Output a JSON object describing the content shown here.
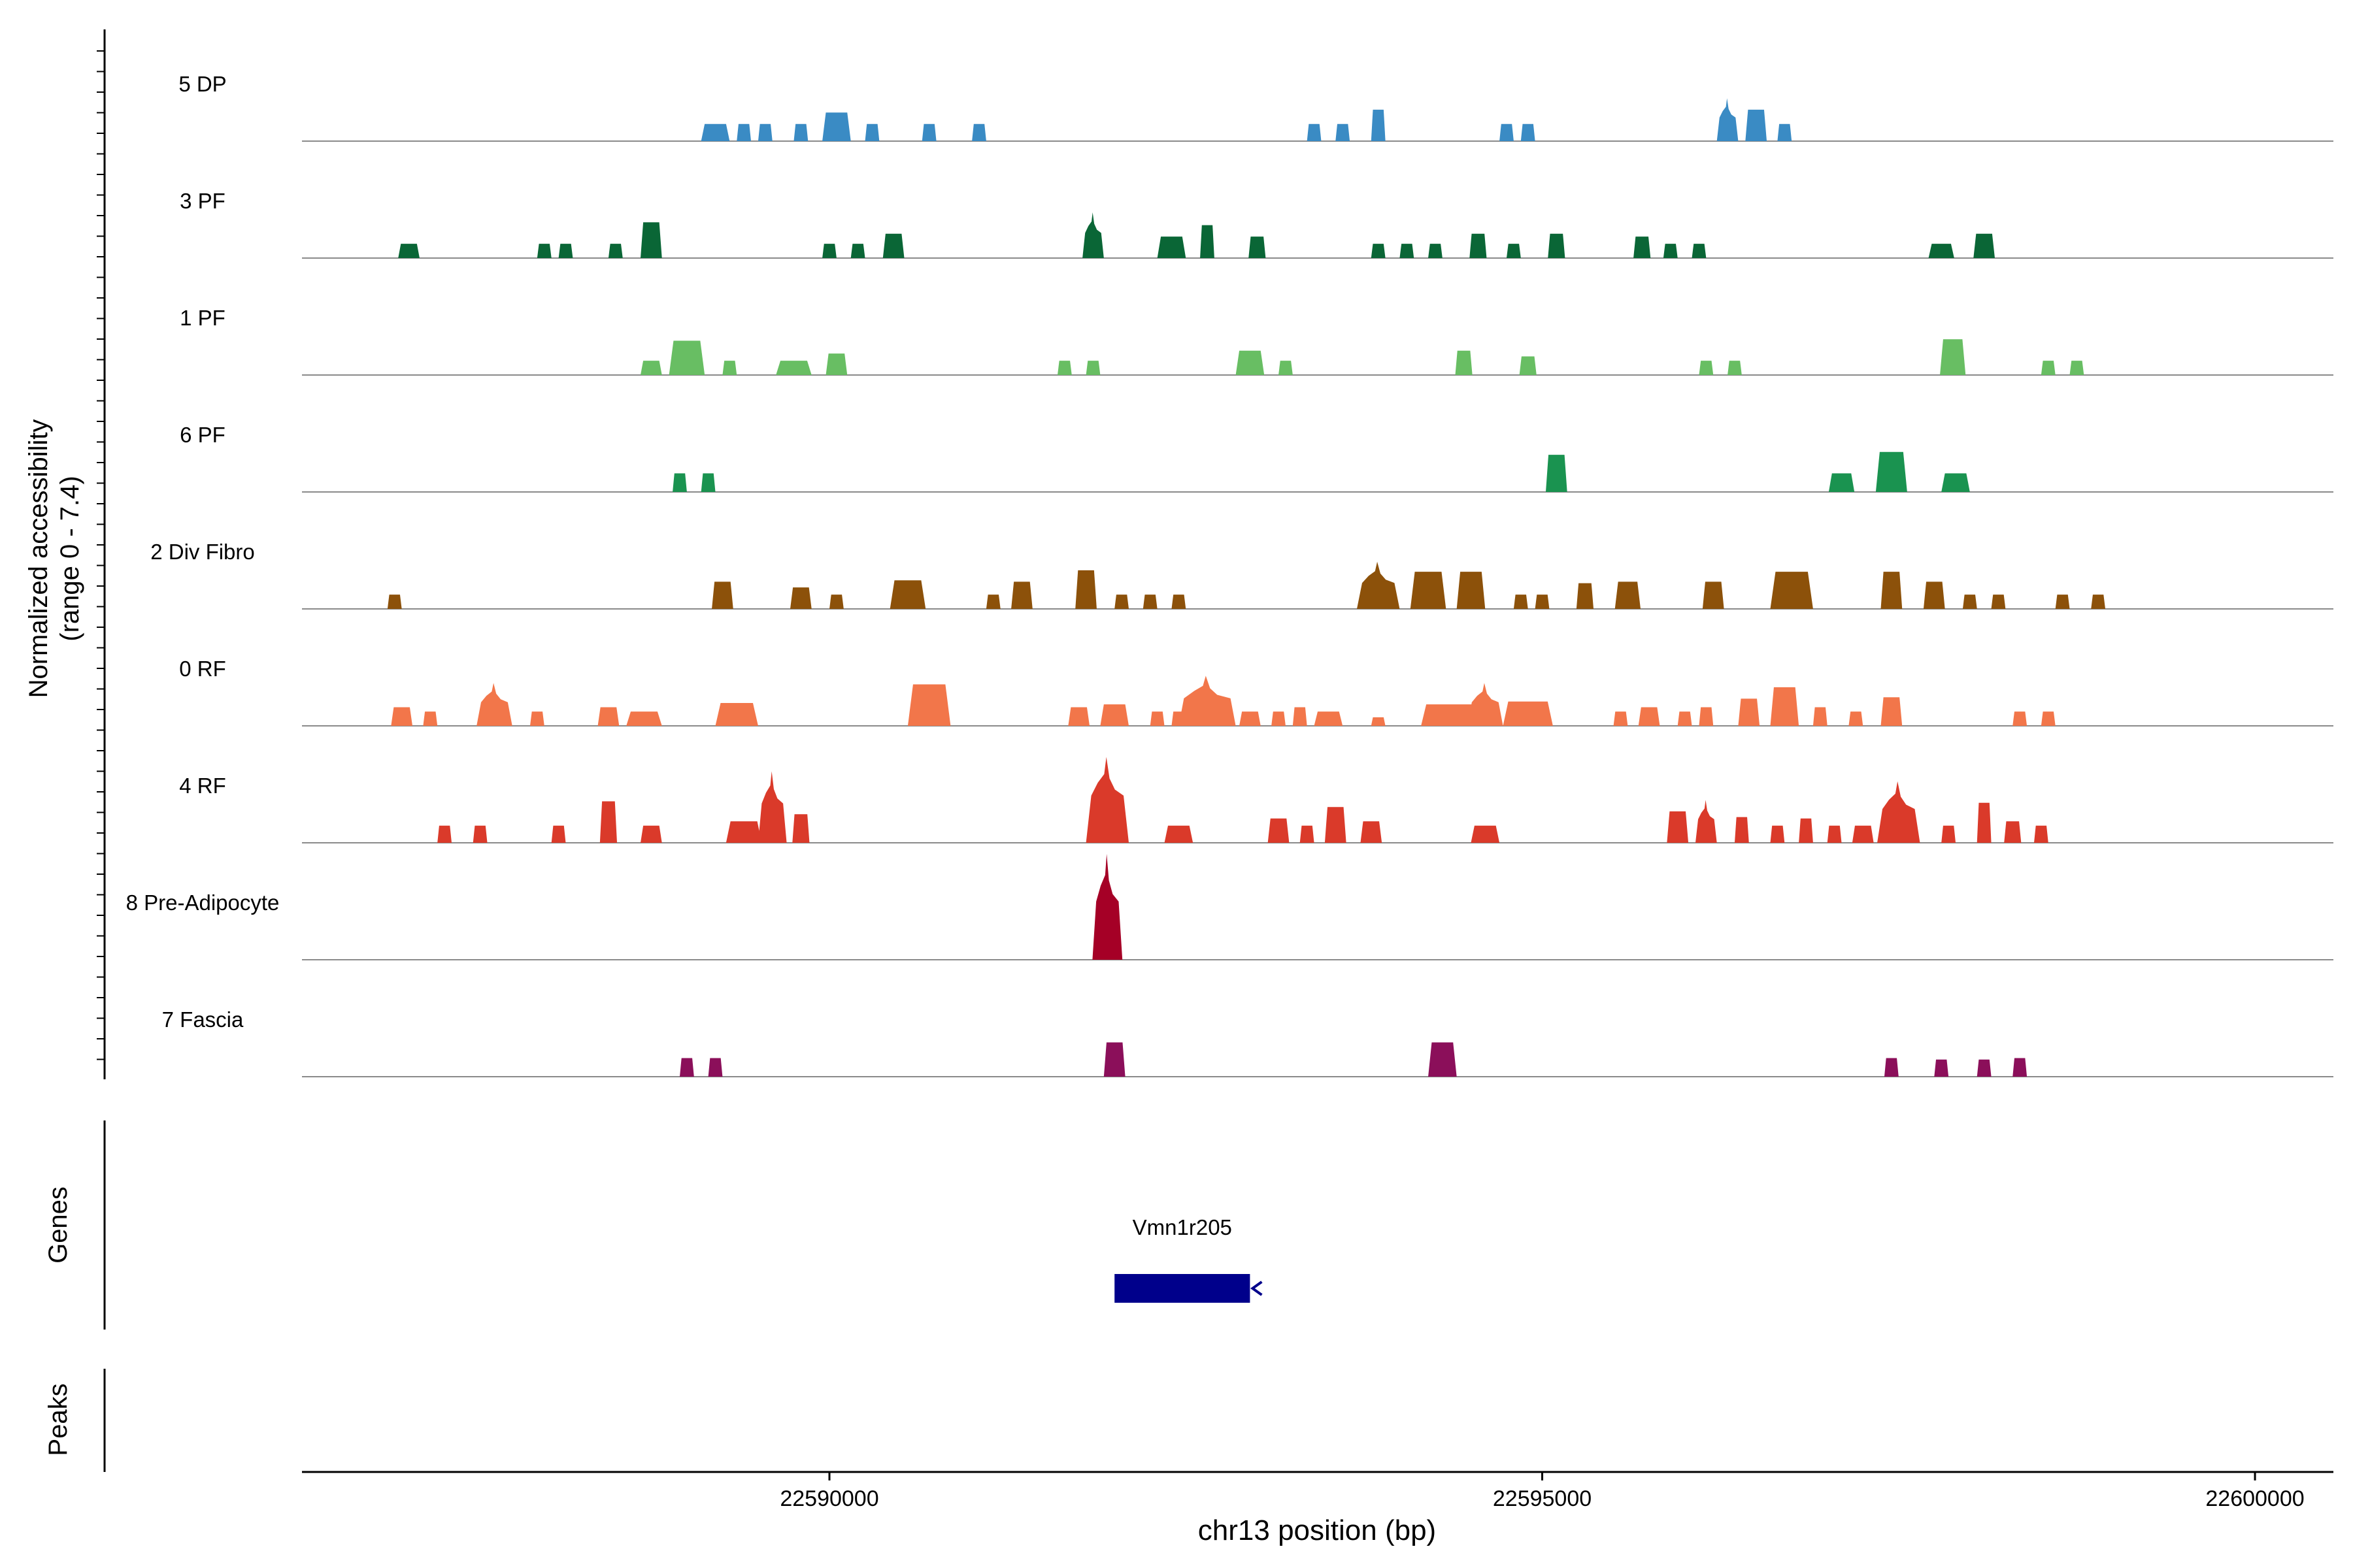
{
  "chart_data": {
    "type": "area",
    "title": "",
    "xlabel": "chr13 position (bp)",
    "ylabel_line1": "Normalized accessibility",
    "ylabel_line2": "(range 0 - 7.4)",
    "genes_label": "Genes",
    "peaks_label": "Peaks",
    "xlim": [
      22586300,
      22600550
    ],
    "ylim": [
      0,
      7.4
    ],
    "xticks": [
      22590000,
      22595000,
      22600000
    ],
    "xtick_labels": [
      "22590000",
      "22595000",
      "22600000"
    ],
    "tracks": [
      {
        "name": "5 DP",
        "color": "#3A8BC4",
        "peaks": [
          [
            22589200,
            200,
            1.2
          ],
          [
            22589400,
            100,
            1.2
          ],
          [
            22589550,
            100,
            1.2
          ],
          [
            22589800,
            100,
            1.2
          ],
          [
            22590050,
            200,
            2.0
          ],
          [
            22590300,
            100,
            1.2
          ],
          [
            22590700,
            100,
            1.2
          ],
          [
            22591050,
            100,
            1.2
          ],
          [
            22593400,
            100,
            1.2
          ],
          [
            22593600,
            100,
            1.2
          ],
          [
            22593850,
            100,
            2.2
          ],
          [
            22594750,
            100,
            1.2
          ],
          [
            22594900,
            100,
            1.2
          ],
          [
            22596300,
            150,
            3.0
          ],
          [
            22596500,
            150,
            2.2
          ],
          [
            22596700,
            100,
            1.2
          ]
        ]
      },
      {
        "name": "3 PF",
        "color": "#0A6636",
        "peaks": [
          [
            22587050,
            150,
            1.0
          ],
          [
            22588000,
            100,
            1.0
          ],
          [
            22588150,
            100,
            1.0
          ],
          [
            22588500,
            100,
            1.0
          ],
          [
            22588750,
            150,
            2.5
          ],
          [
            22590000,
            100,
            1.0
          ],
          [
            22590200,
            100,
            1.0
          ],
          [
            22590450,
            150,
            1.7
          ],
          [
            22591850,
            150,
            3.2
          ],
          [
            22592400,
            200,
            1.5
          ],
          [
            22592650,
            100,
            2.3
          ],
          [
            22593000,
            120,
            1.5
          ],
          [
            22593850,
            100,
            1.0
          ],
          [
            22594050,
            100,
            1.0
          ],
          [
            22594250,
            100,
            1.0
          ],
          [
            22594550,
            120,
            1.7
          ],
          [
            22594800,
            100,
            1.0
          ],
          [
            22595100,
            120,
            1.7
          ],
          [
            22595700,
            120,
            1.5
          ],
          [
            22595900,
            100,
            1.0
          ],
          [
            22596100,
            100,
            1.0
          ],
          [
            22597800,
            180,
            1.0
          ],
          [
            22598100,
            150,
            1.7
          ]
        ]
      },
      {
        "name": "1 PF",
        "color": "#68BE63",
        "peaks": [
          [
            22588750,
            150,
            1.0
          ],
          [
            22589000,
            250,
            2.4
          ],
          [
            22589300,
            100,
            1.0
          ],
          [
            22589750,
            250,
            1.0
          ],
          [
            22590050,
            150,
            1.5
          ],
          [
            22591650,
            100,
            1.0
          ],
          [
            22591850,
            100,
            1.0
          ],
          [
            22592950,
            200,
            1.7
          ],
          [
            22593200,
            100,
            1.0
          ],
          [
            22594450,
            120,
            1.7
          ],
          [
            22594900,
            120,
            1.3
          ],
          [
            22596150,
            100,
            1.0
          ],
          [
            22596350,
            100,
            1.0
          ],
          [
            22597880,
            180,
            2.5
          ],
          [
            22598550,
            100,
            1.0
          ],
          [
            22598750,
            100,
            1.0
          ]
        ]
      },
      {
        "name": "6 PF",
        "color": "#1A9350",
        "peaks": [
          [
            22588950,
            100,
            1.3
          ],
          [
            22589150,
            100,
            1.3
          ],
          [
            22595100,
            150,
            2.6
          ],
          [
            22597100,
            180,
            1.3
          ],
          [
            22597450,
            220,
            2.8
          ],
          [
            22597900,
            200,
            1.3
          ]
        ]
      },
      {
        "name": "2 Div Fibro",
        "color": "#8C510A",
        "peaks": [
          [
            22586950,
            100,
            1.0
          ],
          [
            22589250,
            150,
            1.9
          ],
          [
            22589800,
            150,
            1.5
          ],
          [
            22590050,
            100,
            1.0
          ],
          [
            22590550,
            250,
            2.0
          ],
          [
            22591150,
            100,
            1.0
          ],
          [
            22591350,
            150,
            1.9
          ],
          [
            22591800,
            150,
            2.7
          ],
          [
            22592050,
            100,
            1.0
          ],
          [
            22592250,
            100,
            1.0
          ],
          [
            22592450,
            100,
            1.0
          ],
          [
            22593850,
            300,
            3.3
          ],
          [
            22594200,
            250,
            2.6
          ],
          [
            22594500,
            200,
            2.6
          ],
          [
            22594850,
            100,
            1.0
          ],
          [
            22595000,
            100,
            1.0
          ],
          [
            22595300,
            120,
            1.8
          ],
          [
            22595600,
            180,
            1.9
          ],
          [
            22596200,
            150,
            1.9
          ],
          [
            22596750,
            300,
            2.6
          ],
          [
            22597450,
            150,
            2.6
          ],
          [
            22597750,
            150,
            1.9
          ],
          [
            22598000,
            100,
            1.0
          ],
          [
            22598200,
            100,
            1.0
          ],
          [
            22598650,
            100,
            1.0
          ],
          [
            22598900,
            100,
            1.0
          ]
        ]
      },
      {
        "name": "0 RF",
        "color": "#F2764A",
        "peaks": [
          [
            22587000,
            150,
            1.3
          ],
          [
            22587200,
            100,
            1.0
          ],
          [
            22587650,
            250,
            3.0
          ],
          [
            22587950,
            100,
            1.0
          ],
          [
            22588450,
            150,
            1.3
          ],
          [
            22588700,
            250,
            1.0
          ],
          [
            22589350,
            300,
            1.6
          ],
          [
            22590700,
            300,
            2.9
          ],
          [
            22591750,
            150,
            1.3
          ],
          [
            22592000,
            200,
            1.5
          ],
          [
            22592300,
            100,
            1.0
          ],
          [
            22592450,
            100,
            1.0
          ],
          [
            22592650,
            400,
            3.5
          ],
          [
            22592950,
            150,
            1.0
          ],
          [
            22593150,
            100,
            1.0
          ],
          [
            22593300,
            100,
            1.3
          ],
          [
            22593500,
            200,
            1.0
          ],
          [
            22593850,
            100,
            0.6
          ],
          [
            22594350,
            400,
            1.5
          ],
          [
            22594600,
            250,
            3.0
          ],
          [
            22594900,
            350,
            1.7
          ],
          [
            22595550,
            100,
            1.0
          ],
          [
            22595750,
            150,
            1.3
          ],
          [
            22596000,
            100,
            1.0
          ],
          [
            22596150,
            100,
            1.3
          ],
          [
            22596450,
            150,
            1.9
          ],
          [
            22596700,
            200,
            2.7
          ],
          [
            22596950,
            100,
            1.3
          ],
          [
            22597200,
            100,
            1.0
          ],
          [
            22597450,
            150,
            2.0
          ],
          [
            22598350,
            100,
            1.0
          ],
          [
            22598550,
            100,
            1.0
          ]
        ]
      },
      {
        "name": "4 RF",
        "color": "#DA3A2A",
        "peaks": [
          [
            22587300,
            100,
            1.2
          ],
          [
            22587550,
            100,
            1.2
          ],
          [
            22588100,
            100,
            1.2
          ],
          [
            22588450,
            120,
            2.9
          ],
          [
            22588750,
            150,
            1.2
          ],
          [
            22589400,
            250,
            1.5
          ],
          [
            22589600,
            200,
            5.0
          ],
          [
            22589800,
            120,
            2.0
          ],
          [
            22591950,
            300,
            6.0
          ],
          [
            22592450,
            200,
            1.2
          ],
          [
            22593150,
            150,
            1.7
          ],
          [
            22593350,
            100,
            1.2
          ],
          [
            22593550,
            150,
            2.5
          ],
          [
            22593800,
            150,
            1.5
          ],
          [
            22594600,
            200,
            1.2
          ],
          [
            22595950,
            150,
            2.2
          ],
          [
            22596150,
            150,
            3.0
          ],
          [
            22596400,
            100,
            1.8
          ],
          [
            22596650,
            100,
            1.2
          ],
          [
            22596850,
            100,
            1.7
          ],
          [
            22597050,
            100,
            1.2
          ],
          [
            22597250,
            150,
            1.2
          ],
          [
            22597500,
            300,
            4.3
          ],
          [
            22597850,
            100,
            1.2
          ],
          [
            22598100,
            100,
            2.8
          ],
          [
            22598300,
            120,
            1.5
          ],
          [
            22598500,
            100,
            1.2
          ]
        ]
      },
      {
        "name": "8 Pre-Adipocyte",
        "color": "#A50026",
        "peaks": [
          [
            22591950,
            210,
            7.4
          ]
        ]
      },
      {
        "name": "7 Fascia",
        "color": "#8B0F5A",
        "peaks": [
          [
            22589000,
            100,
            1.3
          ],
          [
            22589200,
            100,
            1.3
          ],
          [
            22592000,
            150,
            2.4
          ],
          [
            22594300,
            200,
            2.4
          ],
          [
            22597450,
            100,
            1.3
          ],
          [
            22597800,
            100,
            1.2
          ],
          [
            22598100,
            100,
            1.2
          ],
          [
            22598350,
            100,
            1.3
          ]
        ]
      }
    ],
    "genes": [
      {
        "name": "Vmn1r205",
        "start": 22592000,
        "end": 22592950,
        "strand": "-",
        "color": "#00008B"
      }
    ],
    "peaks_track": []
  }
}
